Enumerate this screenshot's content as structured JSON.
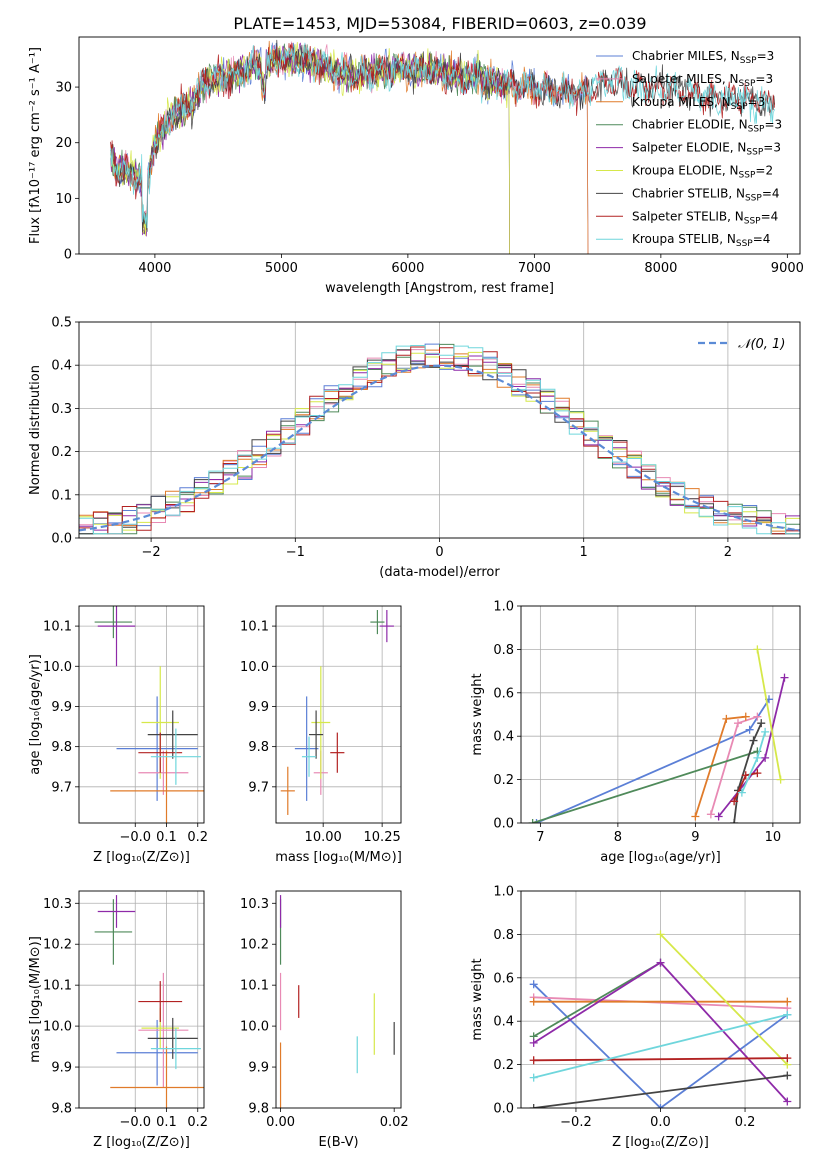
{
  "title": "PLATE=1453, MJD=53084, FIBERID=0603, z=0.039",
  "colors": {
    "chabrier_miles": "#5b7fd6",
    "salpeter_miles": "#e88ab4",
    "kroupa_miles": "#e07b2a",
    "chabrier_elodie": "#4f8a5a",
    "salpeter_elodie": "#8e2aa8",
    "kroupa_elodie": "#d6e84a",
    "chabrier_stelib": "#444444",
    "salpeter_stelib": "#b22222",
    "kroupa_stelib": "#6fd6dc",
    "grid": "#b0b0b0",
    "normal_curve": "#5b8bd6"
  },
  "legend_labels": [
    {
      "pre": "Chabrier MILES, N",
      "sub": "SSP",
      "post": "=3"
    },
    {
      "pre": "Salpeter MILES, N",
      "sub": "SSP",
      "post": "=3"
    },
    {
      "pre": "Kroupa MILES, N",
      "sub": "SSP",
      "post": "=3"
    },
    {
      "pre": "Chabrier ELODIE, N",
      "sub": "SSP",
      "post": "=3"
    },
    {
      "pre": "Salpeter ELODIE, N",
      "sub": "SSP",
      "post": "=3"
    },
    {
      "pre": "Kroupa ELODIE, N",
      "sub": "SSP",
      "post": "=2"
    },
    {
      "pre": "Chabrier STELIB, N",
      "sub": "SSP",
      "post": "=4"
    },
    {
      "pre": "Salpeter STELIB, N",
      "sub": "SSP",
      "post": "=4"
    },
    {
      "pre": "Kroupa STELIB, N",
      "sub": "SSP",
      "post": "=4"
    }
  ],
  "chart_data": [
    {
      "id": "spectrum",
      "type": "line",
      "xlabel": "wavelength [Angstrom, rest frame]",
      "ylabel": "Flux [fλ10⁻¹⁷ erg cm⁻² s⁻¹ A⁻¹]",
      "xlim": [
        3400,
        9100
      ],
      "ylim": [
        0,
        39
      ],
      "xticks": [
        "4000",
        "5000",
        "6000",
        "7000",
        "8000",
        "9000"
      ],
      "yticks": [
        "0",
        "10",
        "20",
        "30"
      ],
      "continuum": {
        "x": [
          3650,
          3700,
          3800,
          3900,
          3950,
          4000,
          4100,
          4200,
          4300,
          4400,
          4600,
          4800,
          5000,
          5200,
          5400,
          5600,
          5800,
          6000,
          6200,
          6400,
          6600,
          6800,
          7000,
          7200,
          7400,
          7600,
          7800,
          8000,
          8200,
          8400,
          8600,
          8800
        ],
        "y": [
          18,
          15,
          15,
          13,
          14,
          20,
          24,
          26,
          27,
          31,
          32,
          34,
          35,
          35,
          33,
          32,
          33,
          33,
          33,
          32,
          31,
          30.5,
          30,
          29,
          29,
          31,
          30,
          30,
          29,
          28,
          28,
          27
        ]
      },
      "series_ends": {
        "chabrier_miles": 7420,
        "salpeter_miles": 7420,
        "kroupa_miles": 7420,
        "chabrier_elodie": 6800,
        "salpeter_elodie": 6800,
        "kroupa_elodie": 6800,
        "chabrier_stelib": 8900,
        "salpeter_stelib": 8900,
        "kroupa_stelib": 8900
      },
      "legend_position": "upper right",
      "grid": false
    },
    {
      "id": "residual_distribution",
      "type": "step",
      "xlabel": "(data-model)/error",
      "ylabel": "Normed distribution",
      "xlim": [
        -2.5,
        2.5
      ],
      "ylim": [
        0,
        0.5
      ],
      "xticks": [
        "−2",
        "−1",
        "0",
        "1",
        "2"
      ],
      "yticks": [
        "0.0",
        "0.1",
        "0.2",
        "0.3",
        "0.4",
        "0.5"
      ],
      "bin_width": 0.1,
      "reference_label": "𝒩(0, 1)",
      "legend_position": "upper right",
      "grid": true
    },
    {
      "id": "age_vs_Z",
      "type": "errorbar",
      "xlabel": "Z [log₁₀(Z/Z⊙)]",
      "ylabel": "age  [log₁₀(age/yr)]",
      "xlim": [
        -0.18,
        0.22
      ],
      "ylim": [
        9.61,
        10.15
      ],
      "xticks": [
        "−0.0",
        "0.1",
        "0.2"
      ],
      "yticks": [
        "9.7",
        "9.8",
        "9.9",
        "10.0",
        "10.1"
      ],
      "grid": true,
      "points": [
        {
          "model": "chabrier_miles",
          "x": 0.07,
          "y": 9.795,
          "xerr": 0.13,
          "yerr": 0.13
        },
        {
          "model": "salpeter_miles",
          "x": 0.09,
          "y": 9.735,
          "xerr": 0.08,
          "yerr": 0.055
        },
        {
          "model": "kroupa_miles",
          "x": 0.1,
          "y": 9.69,
          "xerr": 0.18,
          "yerr": 0.1
        },
        {
          "model": "chabrier_elodie",
          "x": -0.07,
          "y": 10.11,
          "xerr": 0.06,
          "yerr": 0.04
        },
        {
          "model": "salpeter_elodie",
          "x": -0.06,
          "y": 10.1,
          "xerr": 0.06,
          "yerr": 0.1
        },
        {
          "model": "kroupa_elodie",
          "x": 0.08,
          "y": 9.86,
          "xerr": 0.06,
          "yerr": 0.14
        },
        {
          "model": "chabrier_stelib",
          "x": 0.12,
          "y": 9.83,
          "xerr": 0.08,
          "yerr": 0.06
        },
        {
          "model": "salpeter_stelib",
          "x": 0.08,
          "y": 9.785,
          "xerr": 0.07,
          "yerr": 0.05
        },
        {
          "model": "kroupa_stelib",
          "x": 0.13,
          "y": 9.775,
          "xerr": 0.08,
          "yerr": 0.07
        }
      ]
    },
    {
      "id": "age_vs_mass",
      "type": "errorbar",
      "xlabel": "mass [log₁₀(M/M⊙)]",
      "ylabel": "",
      "xlim": [
        9.8,
        10.33
      ],
      "ylim": [
        9.61,
        10.15
      ],
      "xticks": [
        "10.00",
        "10.25"
      ],
      "yticks": [
        "9.7",
        "9.8",
        "9.9",
        "10.0",
        "10.1"
      ],
      "grid": true,
      "points": [
        {
          "model": "chabrier_miles",
          "x": 9.93,
          "y": 9.795,
          "xerr": 0.05,
          "yerr": 0.13
        },
        {
          "model": "salpeter_miles",
          "x": 9.99,
          "y": 9.735,
          "xerr": 0.03,
          "yerr": 0.055
        },
        {
          "model": "kroupa_miles",
          "x": 9.85,
          "y": 9.69,
          "xerr": 0.03,
          "yerr": 0.06
        },
        {
          "model": "chabrier_elodie",
          "x": 10.23,
          "y": 10.11,
          "xerr": 0.03,
          "yerr": 0.03
        },
        {
          "model": "salpeter_elodie",
          "x": 10.27,
          "y": 10.1,
          "xerr": 0.03,
          "yerr": 0.04
        },
        {
          "model": "kroupa_elodie",
          "x": 9.99,
          "y": 9.86,
          "xerr": 0.04,
          "yerr": 0.14
        },
        {
          "model": "chabrier_stelib",
          "x": 9.97,
          "y": 9.83,
          "xerr": 0.03,
          "yerr": 0.06
        },
        {
          "model": "salpeter_stelib",
          "x": 10.06,
          "y": 9.785,
          "xerr": 0.03,
          "yerr": 0.05
        },
        {
          "model": "kroupa_stelib",
          "x": 9.94,
          "y": 9.775,
          "xerr": 0.03,
          "yerr": 0.05
        }
      ]
    },
    {
      "id": "mass_weight_vs_age",
      "type": "line",
      "xlabel": "age  [log₁₀(age/yr)]",
      "ylabel": "mass weight",
      "xlim": [
        6.75,
        10.35
      ],
      "ylim": [
        0,
        1
      ],
      "xticks": [
        "7",
        "8",
        "9",
        "10"
      ],
      "yticks": [
        "0.0",
        "0.2",
        "0.4",
        "0.6",
        "0.8",
        "1.0"
      ],
      "grid": true,
      "series": [
        {
          "model": "chabrier_miles",
          "x": [
            6.95,
            9.7,
            9.95
          ],
          "y": [
            0.0,
            0.43,
            0.57
          ]
        },
        {
          "model": "salpeter_miles",
          "x": [
            9.2,
            9.55,
            9.8
          ],
          "y": [
            0.04,
            0.46,
            0.49
          ]
        },
        {
          "model": "kroupa_miles",
          "x": [
            9.0,
            9.4,
            9.65
          ],
          "y": [
            0.03,
            0.48,
            0.49
          ]
        },
        {
          "model": "chabrier_elodie",
          "x": [
            6.9,
            9.8
          ],
          "y": [
            0.0,
            0.33
          ]
        },
        {
          "model": "salpeter_elodie",
          "x": [
            9.3,
            9.9,
            10.15
          ],
          "y": [
            0.03,
            0.3,
            0.67
          ]
        },
        {
          "model": "kroupa_elodie",
          "x": [
            9.8,
            10.1
          ],
          "y": [
            0.8,
            0.2
          ]
        },
        {
          "model": "chabrier_stelib",
          "x": [
            9.5,
            9.55,
            9.75,
            9.85
          ],
          "y": [
            0.0,
            0.15,
            0.38,
            0.46
          ]
        },
        {
          "model": "salpeter_stelib",
          "x": [
            9.5,
            9.65,
            9.8
          ],
          "y": [
            0.1,
            0.22,
            0.23
          ]
        },
        {
          "model": "kroupa_stelib",
          "x": [
            9.6,
            9.8,
            9.9
          ],
          "y": [
            0.14,
            0.3,
            0.42
          ]
        }
      ]
    },
    {
      "id": "mass_vs_Z",
      "type": "errorbar",
      "xlabel": "Z [log₁₀(Z/Z⊙)]",
      "ylabel": "mass [log₁₀(M/M⊙)]",
      "xlim": [
        -0.18,
        0.22
      ],
      "ylim": [
        9.8,
        10.33
      ],
      "xticks": [
        "−0.0",
        "0.1",
        "0.2"
      ],
      "yticks": [
        "9.8",
        "9.9",
        "10.0",
        "10.1",
        "10.2",
        "10.3"
      ],
      "grid": true,
      "points": [
        {
          "model": "chabrier_miles",
          "x": 0.07,
          "y": 9.935,
          "xerr": 0.13,
          "yerr": 0.08
        },
        {
          "model": "salpeter_miles",
          "x": 0.09,
          "y": 9.99,
          "xerr": 0.08,
          "yerr": 0.14
        },
        {
          "model": "kroupa_miles",
          "x": 0.1,
          "y": 9.85,
          "xerr": 0.18,
          "yerr": 0.1
        },
        {
          "model": "chabrier_elodie",
          "x": -0.07,
          "y": 10.23,
          "xerr": 0.06,
          "yerr": 0.08
        },
        {
          "model": "salpeter_elodie",
          "x": -0.06,
          "y": 10.28,
          "xerr": 0.06,
          "yerr": 0.04
        },
        {
          "model": "kroupa_elodie",
          "x": 0.08,
          "y": 9.995,
          "xerr": 0.06,
          "yerr": 0.05
        },
        {
          "model": "chabrier_stelib",
          "x": 0.12,
          "y": 9.97,
          "xerr": 0.08,
          "yerr": 0.05
        },
        {
          "model": "salpeter_stelib",
          "x": 0.08,
          "y": 10.06,
          "xerr": 0.07,
          "yerr": 0.05
        },
        {
          "model": "kroupa_stelib",
          "x": 0.13,
          "y": 9.945,
          "xerr": 0.08,
          "yerr": 0.05
        }
      ]
    },
    {
      "id": "mass_vs_ebv",
      "type": "errorbar",
      "xlabel": "E(B-V)",
      "ylabel": "",
      "xlim": [
        -0.0008,
        0.0212
      ],
      "ylim": [
        9.8,
        10.33
      ],
      "xticks": [
        "0.00",
        "0.02"
      ],
      "yticks": [
        "9.8",
        "9.9",
        "10.0",
        "10.1",
        "10.2",
        "10.3"
      ],
      "grid": false,
      "points": [
        {
          "model": "chabrier_elodie",
          "x": 0.0,
          "y": 10.23,
          "yerr": 0.08
        },
        {
          "model": "salpeter_elodie",
          "x": 0.0,
          "y": 10.28,
          "yerr": 0.04
        },
        {
          "model": "salpeter_miles",
          "x": 0.0,
          "y": 10.06,
          "yerr": 0.07
        },
        {
          "model": "kroupa_miles",
          "x": 0.0,
          "y": 9.88,
          "yerr": 0.08
        },
        {
          "model": "salpeter_stelib",
          "x": 0.0032,
          "y": 10.06,
          "yerr": 0.04
        },
        {
          "model": "kroupa_stelib",
          "x": 0.0135,
          "y": 9.93,
          "yerr": 0.045
        },
        {
          "model": "kroupa_elodie",
          "x": 0.0165,
          "y": 10.005,
          "yerr": 0.075
        },
        {
          "model": "chabrier_stelib",
          "x": 0.02,
          "y": 9.97,
          "yerr": 0.04
        }
      ]
    },
    {
      "id": "mass_weight_vs_Z",
      "type": "line",
      "xlabel": "Z [log₁₀(Z/Z⊙)]",
      "ylabel": "mass weight",
      "xlim": [
        -0.33,
        0.33
      ],
      "ylim": [
        0,
        1
      ],
      "xticks": [
        "−0.2",
        "0.0",
        "0.2"
      ],
      "yticks": [
        "0.0",
        "0.2",
        "0.4",
        "0.6",
        "0.8",
        "1.0"
      ],
      "grid": true,
      "series": [
        {
          "model": "chabrier_miles",
          "x": [
            -0.3,
            0.0,
            0.3
          ],
          "y": [
            0.57,
            0.0,
            0.43
          ]
        },
        {
          "model": "salpeter_miles",
          "x": [
            -0.3,
            0.3
          ],
          "y": [
            0.51,
            0.46
          ]
        },
        {
          "model": "kroupa_miles",
          "x": [
            -0.3,
            0.3
          ],
          "y": [
            0.49,
            0.49
          ]
        },
        {
          "model": "chabrier_elodie",
          "x": [
            -0.3,
            0.0
          ],
          "y": [
            0.33,
            0.67
          ]
        },
        {
          "model": "salpeter_elodie",
          "x": [
            -0.3,
            0.0,
            0.3
          ],
          "y": [
            0.3,
            0.67,
            0.03
          ]
        },
        {
          "model": "kroupa_elodie",
          "x": [
            0.0,
            0.3
          ],
          "y": [
            0.8,
            0.2
          ]
        },
        {
          "model": "chabrier_stelib",
          "x": [
            -0.3,
            0.3
          ],
          "y": [
            0.0,
            0.15
          ]
        },
        {
          "model": "salpeter_stelib",
          "x": [
            -0.3,
            0.3
          ],
          "y": [
            0.22,
            0.23
          ]
        },
        {
          "model": "kroupa_stelib",
          "x": [
            -0.3,
            0.3
          ],
          "y": [
            0.14,
            0.43
          ]
        }
      ]
    }
  ]
}
